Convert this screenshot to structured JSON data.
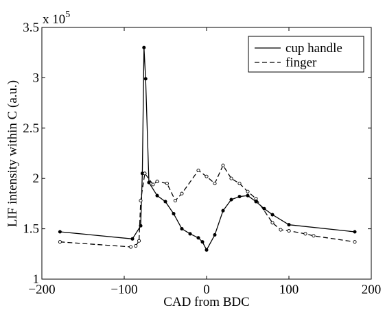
{
  "chart_data": {
    "type": "line",
    "xlabel": "CAD from BDC",
    "ylabel": "LIF intensity within C (a.u.)",
    "y_multiplier": {
      "base": "x 10",
      "exponent": "5"
    },
    "xlim": [
      -200,
      200
    ],
    "ylim": [
      1.0,
      3.5
    ],
    "x_ticks": [
      -200,
      -100,
      0,
      100,
      200
    ],
    "x_tick_labels": [
      "−200",
      "−100",
      "0",
      "100",
      "200"
    ],
    "y_ticks": [
      1.0,
      1.5,
      2.0,
      2.5,
      3.0,
      3.5
    ],
    "y_tick_labels": [
      "1",
      "1.5",
      "2",
      "2.5",
      "3",
      "3.5"
    ],
    "grid": false,
    "legend_position": "top-right",
    "series": [
      {
        "name": "cup handle",
        "line_style": "solid",
        "color": "#000000",
        "x": [
          -178,
          -90,
          -80,
          -78,
          -76,
          -74,
          -70,
          -60,
          -50,
          -40,
          -30,
          -20,
          -10,
          -5,
          0,
          10,
          20,
          30,
          40,
          50,
          60,
          70,
          80,
          100,
          180
        ],
        "y": [
          1.47,
          1.4,
          1.53,
          2.05,
          3.3,
          2.99,
          1.96,
          1.83,
          1.77,
          1.65,
          1.5,
          1.45,
          1.41,
          1.37,
          1.29,
          1.44,
          1.68,
          1.79,
          1.82,
          1.83,
          1.77,
          1.7,
          1.64,
          1.54,
          1.47
        ]
      },
      {
        "name": "finger",
        "line_style": "dashed",
        "color": "#000000",
        "x": [
          -178,
          -92,
          -86,
          -82,
          -80,
          -75,
          -65,
          -60,
          -48,
          -38,
          -30,
          -10,
          0,
          10,
          20,
          30,
          40,
          50,
          60,
          80,
          90,
          100,
          120,
          130,
          180
        ],
        "y": [
          1.37,
          1.32,
          1.33,
          1.38,
          1.78,
          2.05,
          1.94,
          1.97,
          1.95,
          1.78,
          1.85,
          2.08,
          2.02,
          1.95,
          2.13,
          2.0,
          1.95,
          1.87,
          1.8,
          1.56,
          1.49,
          1.48,
          1.45,
          1.43,
          1.37
        ]
      }
    ]
  }
}
